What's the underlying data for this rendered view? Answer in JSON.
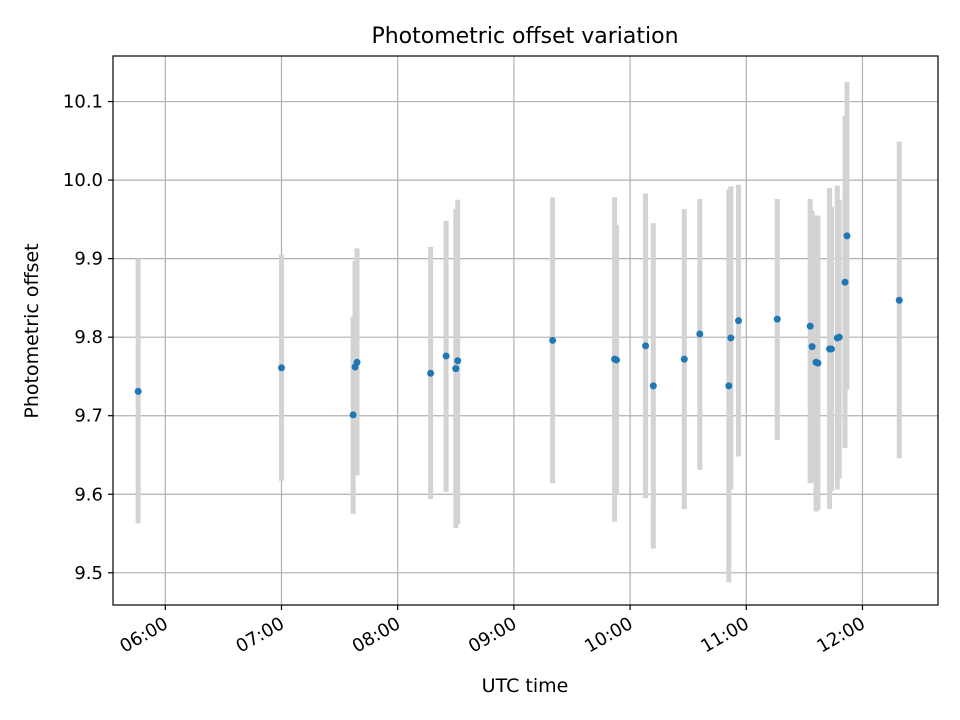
{
  "chart_data": {
    "type": "scatter",
    "title": "Photometric offset variation",
    "xlabel": "UTC time",
    "ylabel": "Photometric offset",
    "xlim": [
      "05:33",
      "12:39"
    ],
    "ylim": [
      9.459,
      10.158
    ],
    "x_ticks": [
      "06:00",
      "07:00",
      "08:00",
      "09:00",
      "10:00",
      "11:00",
      "12:00"
    ],
    "y_ticks": [
      "9.5",
      "9.6",
      "9.7",
      "9.8",
      "9.9",
      "10.0",
      "10.1"
    ],
    "grid": true,
    "colors": {
      "point": "#1f77b4",
      "errorbar": "#d3d3d3",
      "grid": "#b0b0b0"
    },
    "points": [
      {
        "t": "05:46",
        "y": 9.731,
        "lo": 9.563,
        "hi": 9.9
      },
      {
        "t": "07:00",
        "y": 9.761,
        "lo": 9.617,
        "hi": 9.905
      },
      {
        "t": "07:37",
        "y": 9.701,
        "lo": 9.575,
        "hi": 9.826
      },
      {
        "t": "07:38",
        "y": 9.762,
        "lo": 9.627,
        "hi": 9.897
      },
      {
        "t": "07:39",
        "y": 9.768,
        "lo": 9.624,
        "hi": 9.913
      },
      {
        "t": "08:17",
        "y": 9.754,
        "lo": 9.594,
        "hi": 9.915
      },
      {
        "t": "08:25",
        "y": 9.776,
        "lo": 9.603,
        "hi": 9.948
      },
      {
        "t": "08:30",
        "y": 9.76,
        "lo": 9.557,
        "hi": 9.963
      },
      {
        "t": "08:31",
        "y": 9.77,
        "lo": 9.562,
        "hi": 9.975
      },
      {
        "t": "09:20",
        "y": 9.796,
        "lo": 9.614,
        "hi": 9.978
      },
      {
        "t": "09:52",
        "y": 9.772,
        "lo": 9.565,
        "hi": 9.978
      },
      {
        "t": "09:53",
        "y": 9.771,
        "lo": 9.599,
        "hi": 9.943
      },
      {
        "t": "10:08",
        "y": 9.789,
        "lo": 9.595,
        "hi": 9.983
      },
      {
        "t": "10:12",
        "y": 9.738,
        "lo": 9.531,
        "hi": 9.945
      },
      {
        "t": "10:28",
        "y": 9.772,
        "lo": 9.581,
        "hi": 9.963
      },
      {
        "t": "10:36",
        "y": 9.804,
        "lo": 9.631,
        "hi": 9.976
      },
      {
        "t": "10:51",
        "y": 9.738,
        "lo": 9.488,
        "hi": 9.988
      },
      {
        "t": "10:52",
        "y": 9.799,
        "lo": 9.606,
        "hi": 9.992
      },
      {
        "t": "10:56",
        "y": 9.821,
        "lo": 9.648,
        "hi": 9.994
      },
      {
        "t": "11:16",
        "y": 9.823,
        "lo": 9.669,
        "hi": 9.976
      },
      {
        "t": "11:33",
        "y": 9.814,
        "lo": 9.614,
        "hi": 9.976
      },
      {
        "t": "11:34",
        "y": 9.788,
        "lo": 9.615,
        "hi": 9.961
      },
      {
        "t": "11:36",
        "y": 9.768,
        "lo": 9.578,
        "hi": 9.955
      },
      {
        "t": "11:37",
        "y": 9.767,
        "lo": 9.58,
        "hi": 9.954
      },
      {
        "t": "11:43",
        "y": 9.785,
        "lo": 9.581,
        "hi": 9.99
      },
      {
        "t": "11:44",
        "y": 9.785,
        "lo": 9.604,
        "hi": 9.966
      },
      {
        "t": "11:47",
        "y": 9.799,
        "lo": 9.606,
        "hi": 9.993
      },
      {
        "t": "11:48",
        "y": 9.8,
        "lo": 9.62,
        "hi": 9.975
      },
      {
        "t": "11:51",
        "y": 9.87,
        "lo": 9.659,
        "hi": 10.082
      },
      {
        "t": "11:52",
        "y": 9.929,
        "lo": 9.733,
        "hi": 10.125
      },
      {
        "t": "12:19",
        "y": 9.847,
        "lo": 9.646,
        "hi": 10.049
      }
    ]
  }
}
